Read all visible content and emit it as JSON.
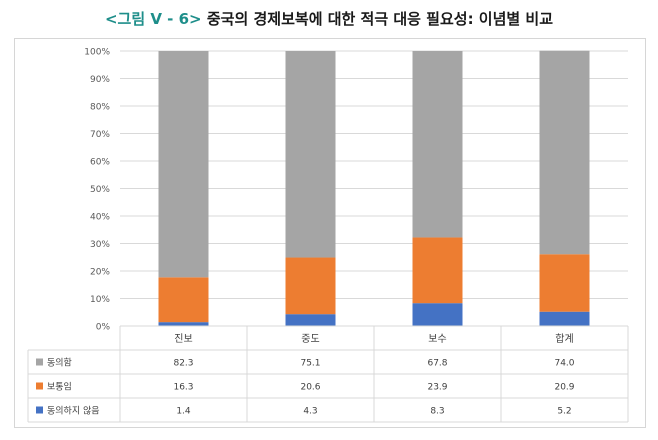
{
  "title": {
    "prefix": "<그림 V - 6>",
    "text": "중국의 경제보복에 대한 적극 대응 필요성: 이념별 비교"
  },
  "colors": {
    "agree": "#a5a5a5",
    "neutral": "#ed7d31",
    "disagree": "#4472c4",
    "grid": "#d9d9d9",
    "title_accent": "#1e8e8a"
  },
  "chart_data": {
    "type": "bar",
    "stacked": true,
    "percent_stacked": true,
    "categories": [
      "진보",
      "중도",
      "보수",
      "합계"
    ],
    "series": [
      {
        "name": "동의하지 않음",
        "values": [
          1.4,
          4.3,
          8.3,
          5.2
        ],
        "color": "#4472c4"
      },
      {
        "name": "보통임",
        "values": [
          16.3,
          20.6,
          23.9,
          20.9
        ],
        "color": "#ed7d31"
      },
      {
        "name": "동의함",
        "values": [
          82.3,
          75.1,
          67.8,
          74.0
        ],
        "color": "#a5a5a5"
      }
    ],
    "ylim": [
      0,
      100
    ],
    "yticks": [
      "0%",
      "10%",
      "20%",
      "30%",
      "40%",
      "50%",
      "60%",
      "70%",
      "80%",
      "90%",
      "100%"
    ],
    "grid": true,
    "legend": "data-table-rows",
    "data_table": true,
    "table_row_order": [
      "동의함",
      "보통임",
      "동의하지 않음"
    ]
  }
}
